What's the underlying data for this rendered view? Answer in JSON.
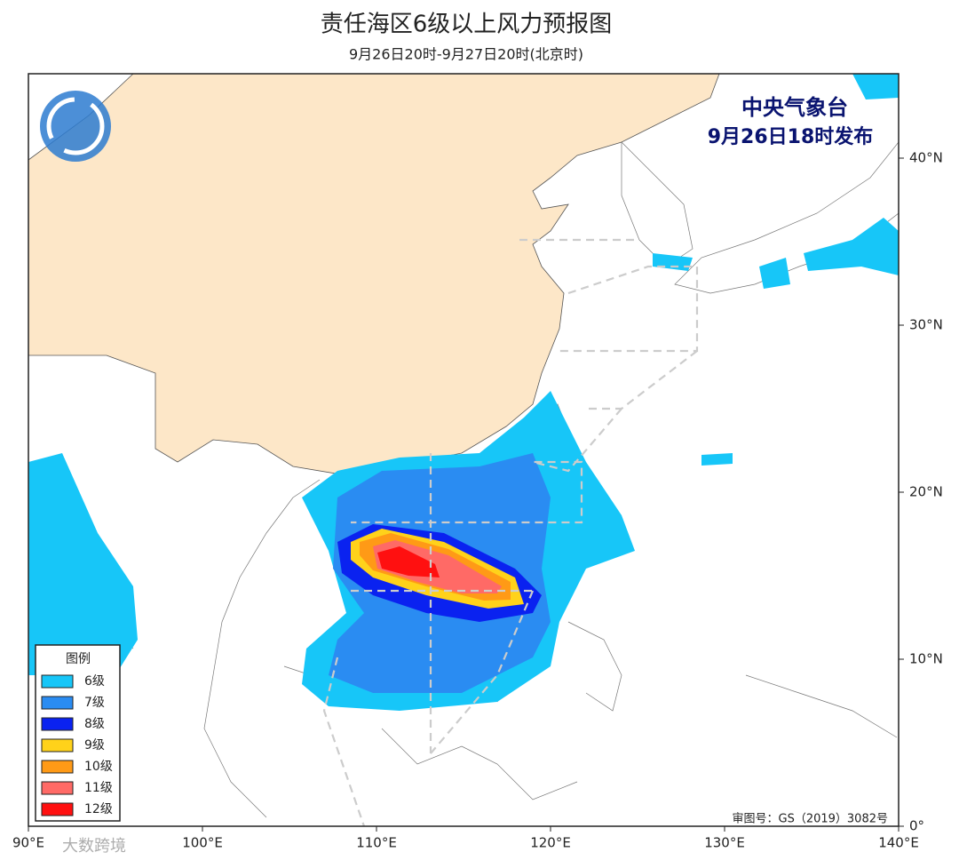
{
  "title": "责任海区6级以上风力预报图",
  "subtitle": "9月26日20时-9月27日20时(北京时)",
  "agency": "中央气象台",
  "issued": "9月26日18时发布",
  "legend": {
    "title": "图例",
    "items": [
      {
        "label": "6级",
        "color": "#17c6f8"
      },
      {
        "label": "7级",
        "color": "#2a8cf2"
      },
      {
        "label": "8级",
        "color": "#0a22f0"
      },
      {
        "label": "9级",
        "color": "#ffd21a"
      },
      {
        "label": "10级",
        "color": "#ff9a16"
      },
      {
        "label": "11级",
        "color": "#ff6a66"
      },
      {
        "label": "12级",
        "color": "#ff1010"
      }
    ]
  },
  "lon_ticks": [
    {
      "value": 90,
      "label": "90°E"
    },
    {
      "value": 100,
      "label": "100°E"
    },
    {
      "value": 110,
      "label": "110°E"
    },
    {
      "value": 120,
      "label": "120°E"
    },
    {
      "value": 130,
      "label": "130°E"
    },
    {
      "value": 140,
      "label": "140°E"
    }
  ],
  "lat_ticks": [
    {
      "value": 0,
      "label": "0°"
    },
    {
      "value": 10,
      "label": "10°N"
    },
    {
      "value": 20,
      "label": "20°N"
    },
    {
      "value": 30,
      "label": "30°N"
    },
    {
      "value": 40,
      "label": "40°N"
    }
  ],
  "approval": "审图号：GS（2019）3082号",
  "watermark": "大数跨境"
}
